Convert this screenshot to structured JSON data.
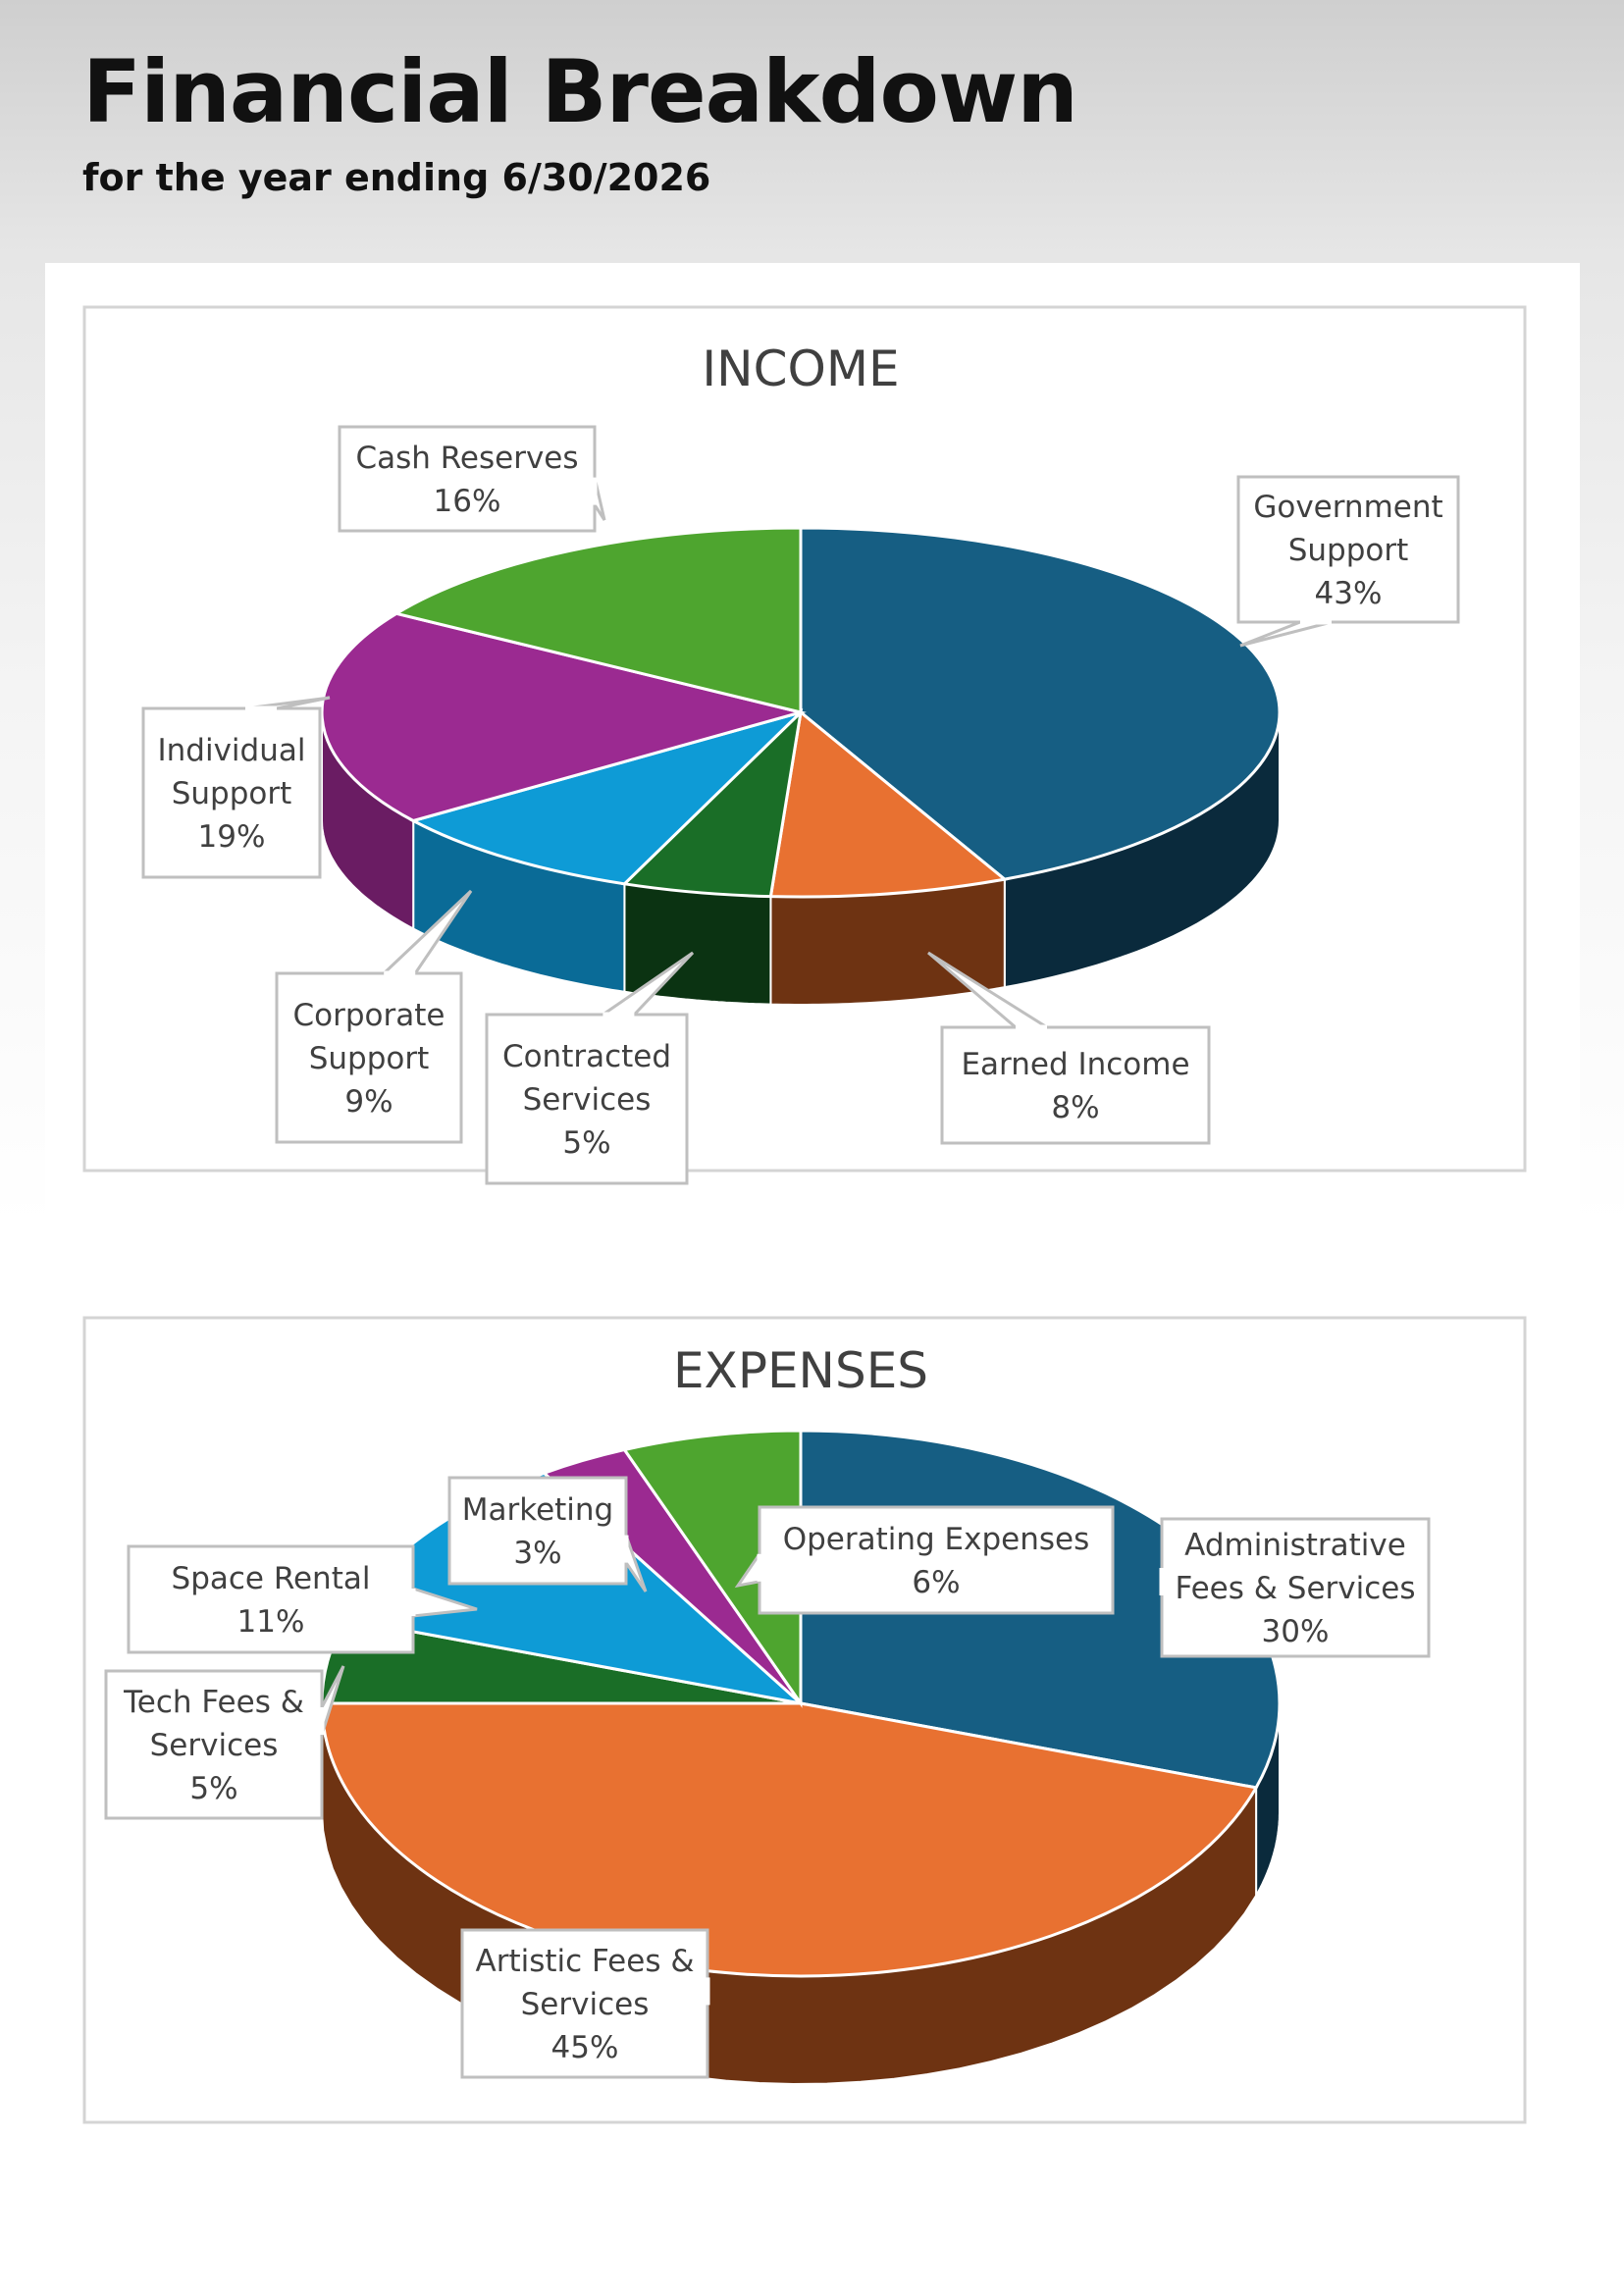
{
  "header": {
    "title": "Financial Breakdown",
    "subtitle": "for the year ending 6/30/2026"
  },
  "chart_data": [
    {
      "type": "pie",
      "title": "INCOME",
      "slices": [
        {
          "label": "Government Support",
          "value": 43,
          "display": "43%",
          "color": "#165E83",
          "side_color": "#0A2A3C"
        },
        {
          "label": "Earned Income",
          "value": 8,
          "display": "8%",
          "color": "#E87131",
          "side_color": "#6E3312"
        },
        {
          "label": "Contracted Services",
          "value": 5,
          "display": "5%",
          "color": "#1A6E27",
          "side_color": "#0B3312"
        },
        {
          "label": "Corporate Support",
          "value": 9,
          "display": "9%",
          "color": "#0E9BD6",
          "side_color": "#0A6B97"
        },
        {
          "label": "Individual Support",
          "value": 19,
          "display": "19%",
          "color": "#9B2A91",
          "side_color": "#6A1C63"
        },
        {
          "label": "Cash Reserves",
          "value": 16,
          "display": "16%",
          "color": "#4EA52F",
          "side_color": "#2F6A1C"
        }
      ],
      "legend": "callouts"
    },
    {
      "type": "pie",
      "title": "EXPENSES",
      "slices": [
        {
          "label": "Administrative Fees & Services",
          "value": 30,
          "display": "30%",
          "color": "#165E83",
          "side_color": "#0A2A3C"
        },
        {
          "label": "Artistic Fees & Services",
          "value": 45,
          "display": "45%",
          "color": "#E87131",
          "side_color": "#6E3312"
        },
        {
          "label": "Tech Fees & Services",
          "value": 5,
          "display": "5%",
          "color": "#1A6E27",
          "side_color": "#0B3312"
        },
        {
          "label": "Space Rental",
          "value": 11,
          "display": "11%",
          "color": "#0E9BD6",
          "side_color": "#0A6B97"
        },
        {
          "label": "Marketing",
          "value": 3,
          "display": "3%",
          "color": "#9B2A91",
          "side_color": "#6A1C63"
        },
        {
          "label": "Operating Expenses",
          "value": 6,
          "display": "6%",
          "color": "#4EA52F",
          "side_color": "#2F6A1C"
        }
      ],
      "legend": "callouts"
    }
  ]
}
